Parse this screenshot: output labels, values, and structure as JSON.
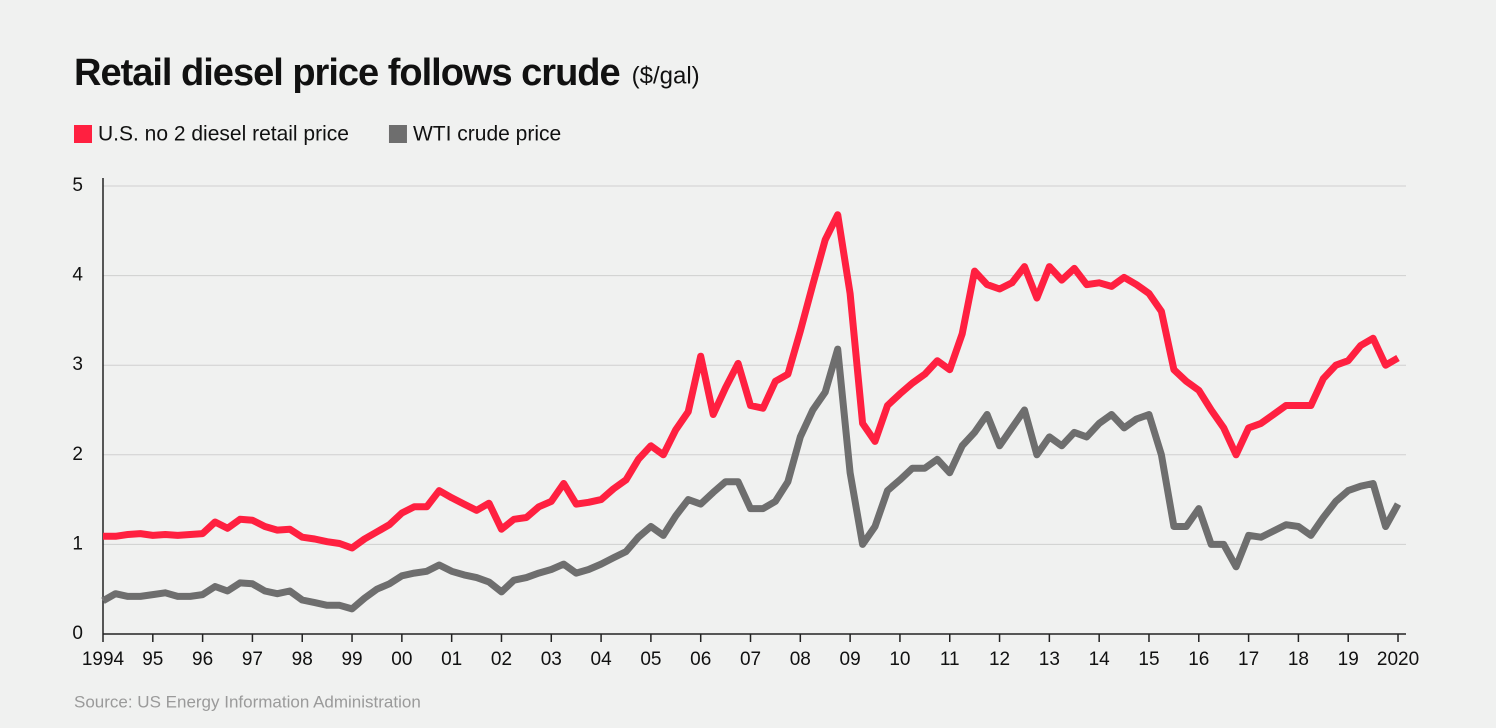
{
  "chart_data": {
    "type": "line",
    "title": "Retail diesel price follows crude",
    "subtitle": "($/gal)",
    "source": "Source: US Energy Information Administration",
    "x": [
      1994,
      1994.25,
      1994.5,
      1994.75,
      1995,
      1995.25,
      1995.5,
      1995.75,
      1996,
      1996.25,
      1996.5,
      1996.75,
      1997,
      1997.25,
      1997.5,
      1997.75,
      1998,
      1998.25,
      1998.5,
      1998.75,
      1999,
      1999.25,
      1999.5,
      1999.75,
      2000,
      2000.25,
      2000.5,
      2000.75,
      2001,
      2001.25,
      2001.5,
      2001.75,
      2002,
      2002.25,
      2002.5,
      2002.75,
      2003,
      2003.25,
      2003.5,
      2003.75,
      2004,
      2004.25,
      2004.5,
      2004.75,
      2005,
      2005.25,
      2005.5,
      2005.75,
      2006,
      2006.25,
      2006.5,
      2006.75,
      2007,
      2007.25,
      2007.5,
      2007.75,
      2008,
      2008.25,
      2008.5,
      2008.75,
      2009,
      2009.25,
      2009.5,
      2009.75,
      2010,
      2010.25,
      2010.5,
      2010.75,
      2011,
      2011.25,
      2011.5,
      2011.75,
      2012,
      2012.25,
      2012.5,
      2012.75,
      2013,
      2013.25,
      2013.5,
      2013.75,
      2014,
      2014.25,
      2014.5,
      2014.75,
      2015,
      2015.25,
      2015.5,
      2015.75,
      2016,
      2016.25,
      2016.5,
      2016.75,
      2017,
      2017.25,
      2017.5,
      2017.75,
      2018,
      2018.25,
      2018.5,
      2018.75,
      2019,
      2019.25,
      2019.5,
      2019.75,
      2020
    ],
    "series": [
      {
        "name": "U.S. no 2 diesel retail price",
        "color": "#ff2040",
        "values": [
          1.09,
          1.09,
          1.11,
          1.12,
          1.1,
          1.11,
          1.1,
          1.11,
          1.12,
          1.25,
          1.18,
          1.28,
          1.27,
          1.2,
          1.16,
          1.17,
          1.08,
          1.06,
          1.03,
          1.01,
          0.96,
          1.06,
          1.14,
          1.22,
          1.35,
          1.42,
          1.42,
          1.6,
          1.52,
          1.45,
          1.38,
          1.46,
          1.17,
          1.28,
          1.3,
          1.42,
          1.48,
          1.68,
          1.45,
          1.47,
          1.5,
          1.62,
          1.72,
          1.95,
          2.1,
          2.0,
          2.28,
          2.48,
          3.1,
          2.45,
          2.75,
          3.02,
          2.55,
          2.52,
          2.82,
          2.9,
          3.38,
          3.9,
          4.4,
          4.68,
          3.8,
          2.35,
          2.15,
          2.55,
          2.68,
          2.8,
          2.9,
          3.05,
          2.95,
          3.35,
          4.05,
          3.9,
          3.85,
          3.92,
          4.1,
          3.75,
          4.1,
          3.95,
          4.08,
          3.9,
          3.92,
          3.88,
          3.98,
          3.9,
          3.8,
          3.6,
          2.95,
          2.82,
          2.72,
          2.5,
          2.3,
          2.0,
          2.3,
          2.35,
          2.45,
          2.55,
          2.55,
          2.55,
          2.85,
          3.0,
          3.05,
          3.22,
          3.3,
          3.0,
          3.08
        ]
      },
      {
        "name": "WTI crude price",
        "color": "#6e6e6e",
        "values": [
          0.37,
          0.45,
          0.42,
          0.42,
          0.44,
          0.46,
          0.42,
          0.42,
          0.44,
          0.53,
          0.48,
          0.57,
          0.56,
          0.48,
          0.45,
          0.48,
          0.38,
          0.35,
          0.32,
          0.32,
          0.28,
          0.4,
          0.5,
          0.56,
          0.65,
          0.68,
          0.7,
          0.77,
          0.7,
          0.66,
          0.63,
          0.58,
          0.47,
          0.6,
          0.63,
          0.68,
          0.72,
          0.78,
          0.68,
          0.72,
          0.78,
          0.85,
          0.92,
          1.08,
          1.2,
          1.1,
          1.32,
          1.5,
          1.45,
          1.58,
          1.7,
          1.7,
          1.4,
          1.4,
          1.48,
          1.7,
          2.2,
          2.5,
          2.7,
          3.18,
          1.8,
          1.0,
          1.2,
          1.6,
          1.72,
          1.85,
          1.85,
          1.95,
          1.8,
          2.1,
          2.25,
          2.45,
          2.1,
          2.3,
          2.5,
          2.0,
          2.2,
          2.1,
          2.25,
          2.2,
          2.35,
          2.45,
          2.3,
          2.4,
          2.45,
          2.0,
          1.2,
          1.2,
          1.4,
          1.0,
          1.0,
          0.75,
          1.1,
          1.08,
          1.15,
          1.22,
          1.2,
          1.1,
          1.3,
          1.48,
          1.6,
          1.65,
          1.68,
          1.2,
          1.45
        ]
      }
    ],
    "xlim": [
      1994,
      2020.1
    ],
    "ylim": [
      0,
      5
    ],
    "xticks": [
      1994,
      {
        "value": 1995,
        "label": "95"
      },
      {
        "value": 1996,
        "label": "96"
      },
      {
        "value": 1997,
        "label": "97"
      },
      {
        "value": 1998,
        "label": "98"
      },
      {
        "value": 1999,
        "label": "99"
      },
      {
        "value": 2000,
        "label": "00"
      },
      {
        "value": 2001,
        "label": "01"
      },
      {
        "value": 2002,
        "label": "02"
      },
      {
        "value": 2003,
        "label": "03"
      },
      {
        "value": 2004,
        "label": "04"
      },
      {
        "value": 2005,
        "label": "05"
      },
      {
        "value": 2006,
        "label": "06"
      },
      {
        "value": 2007,
        "label": "07"
      },
      {
        "value": 2008,
        "label": "08"
      },
      {
        "value": 2009,
        "label": "09"
      },
      {
        "value": 2010,
        "label": "10"
      },
      {
        "value": 2011,
        "label": "11"
      },
      {
        "value": 2012,
        "label": "12"
      },
      {
        "value": 2013,
        "label": "13"
      },
      {
        "value": 2014,
        "label": "14"
      },
      {
        "value": 2015,
        "label": "15"
      },
      {
        "value": 2016,
        "label": "16"
      },
      {
        "value": 2017,
        "label": "17"
      },
      {
        "value": 2018,
        "label": "18"
      },
      {
        "value": 2019,
        "label": "19"
      },
      2020
    ],
    "yticks": [
      0,
      1,
      2,
      3,
      4,
      5
    ],
    "grid": true
  }
}
